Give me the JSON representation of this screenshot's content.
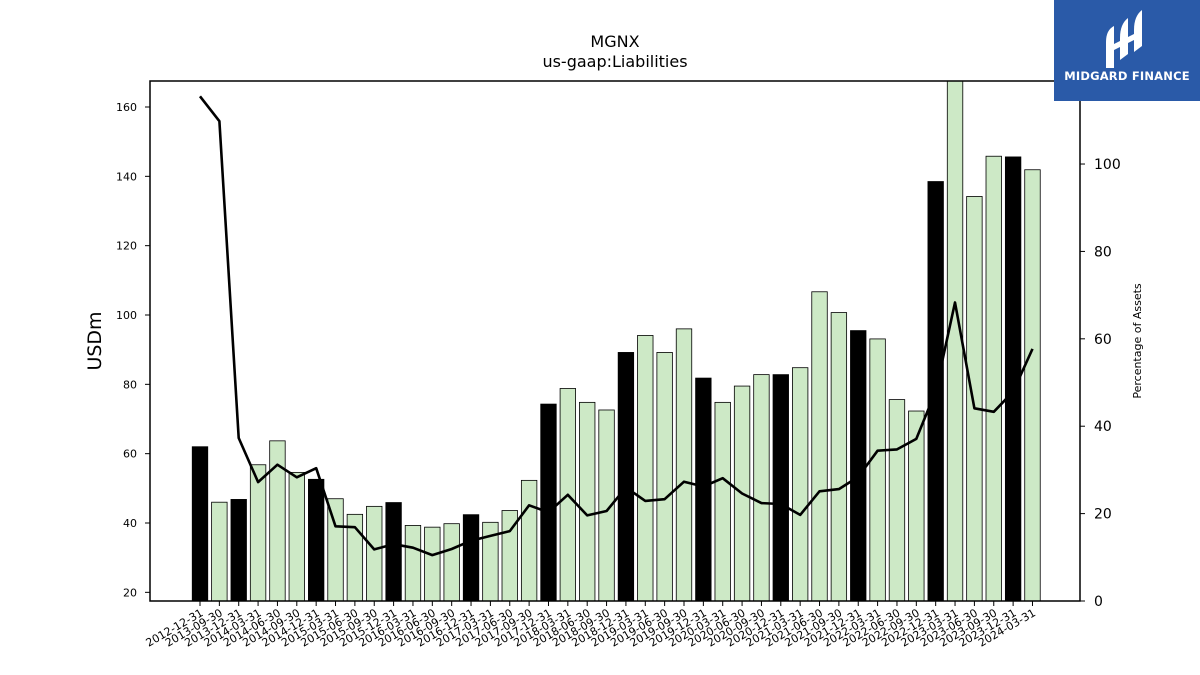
{
  "chart_data": {
    "type": "bar",
    "title": "MGNX",
    "subtitle": "us-gaap:Liabilities",
    "ylabel": "USDm",
    "y2label": "Percentage of Assets",
    "ylim": [
      17.5,
      167.5
    ],
    "y2lim": [
      0,
      119
    ],
    "yticks": [
      20,
      40,
      60,
      80,
      100,
      120,
      140,
      160
    ],
    "y2ticks": [
      0,
      20,
      40,
      60,
      80,
      100
    ],
    "categories": [
      "2012-12-31",
      "2013-09-30",
      "2013-12-31",
      "2014-03-31",
      "2014-06-30",
      "2014-09-30",
      "2014-12-31",
      "2015-03-31",
      "2015-06-30",
      "2015-09-30",
      "2015-12-31",
      "2016-03-31",
      "2016-06-30",
      "2016-09-30",
      "2016-12-31",
      "2017-03-31",
      "2017-06-30",
      "2017-09-30",
      "2017-12-31",
      "2018-03-31",
      "2018-06-30",
      "2018-09-30",
      "2018-12-31",
      "2019-03-31",
      "2019-06-30",
      "2019-09-30",
      "2019-12-31",
      "2020-03-31",
      "2020-06-30",
      "2020-09-30",
      "2020-12-31",
      "2021-03-31",
      "2021-06-30",
      "2021-09-30",
      "2021-12-31",
      "2022-03-31",
      "2022-06-30",
      "2022-09-30",
      "2022-12-31",
      "2023-03-31",
      "2023-06-30",
      "2023-09-30",
      "2023-12-31",
      "2024-03-31"
    ],
    "series": [
      {
        "type": "bar",
        "axis": "left",
        "values": [
          62.0,
          46.0,
          46.8,
          56.8,
          63.7,
          54.6,
          52.6,
          47.0,
          42.5,
          44.8,
          45.9,
          39.3,
          38.8,
          39.8,
          42.4,
          40.2,
          43.6,
          52.3,
          74.3,
          78.8,
          74.8,
          72.6,
          89.2,
          94.1,
          89.2,
          96.0,
          81.8,
          74.8,
          79.5,
          82.8,
          82.8,
          84.8,
          106.7,
          100.7,
          95.5,
          93.1,
          75.6,
          72.3,
          138.5,
          167.5,
          134.2,
          145.8,
          145.6,
          141.9
        ],
        "highlight": [
          true,
          false,
          true,
          false,
          false,
          false,
          true,
          false,
          false,
          false,
          true,
          false,
          false,
          false,
          true,
          false,
          false,
          false,
          true,
          false,
          false,
          false,
          true,
          false,
          false,
          false,
          true,
          false,
          false,
          false,
          true,
          false,
          false,
          false,
          true,
          false,
          false,
          false,
          true,
          false,
          false,
          false,
          true,
          false
        ]
      },
      {
        "type": "line",
        "axis": "right",
        "values": [
          115.5,
          109.8,
          37.3,
          27.2,
          31.2,
          28.3,
          30.4,
          17.1,
          16.9,
          11.8,
          13.0,
          12.2,
          10.5,
          11.9,
          13.8,
          14.9,
          16.0,
          21.9,
          20.3,
          24.3,
          19.6,
          20.6,
          26.0,
          22.9,
          23.3,
          27.3,
          26.2,
          28.1,
          24.6,
          22.4,
          22.2,
          19.7,
          25.1,
          25.6,
          28.4,
          34.4,
          34.7,
          37.1,
          48.0,
          68.3,
          44.1,
          43.3,
          47.9,
          57.7
        ]
      }
    ],
    "colors": {
      "bar_highlight": "#000000",
      "bar_normal": "#cde9c6",
      "line": "#000000",
      "logo_bg": "#2a5aa8"
    },
    "grid": false
  },
  "logo": {
    "text": "MIDGARD FINANCE",
    "icon": "midgard-finance-logo-icon"
  }
}
